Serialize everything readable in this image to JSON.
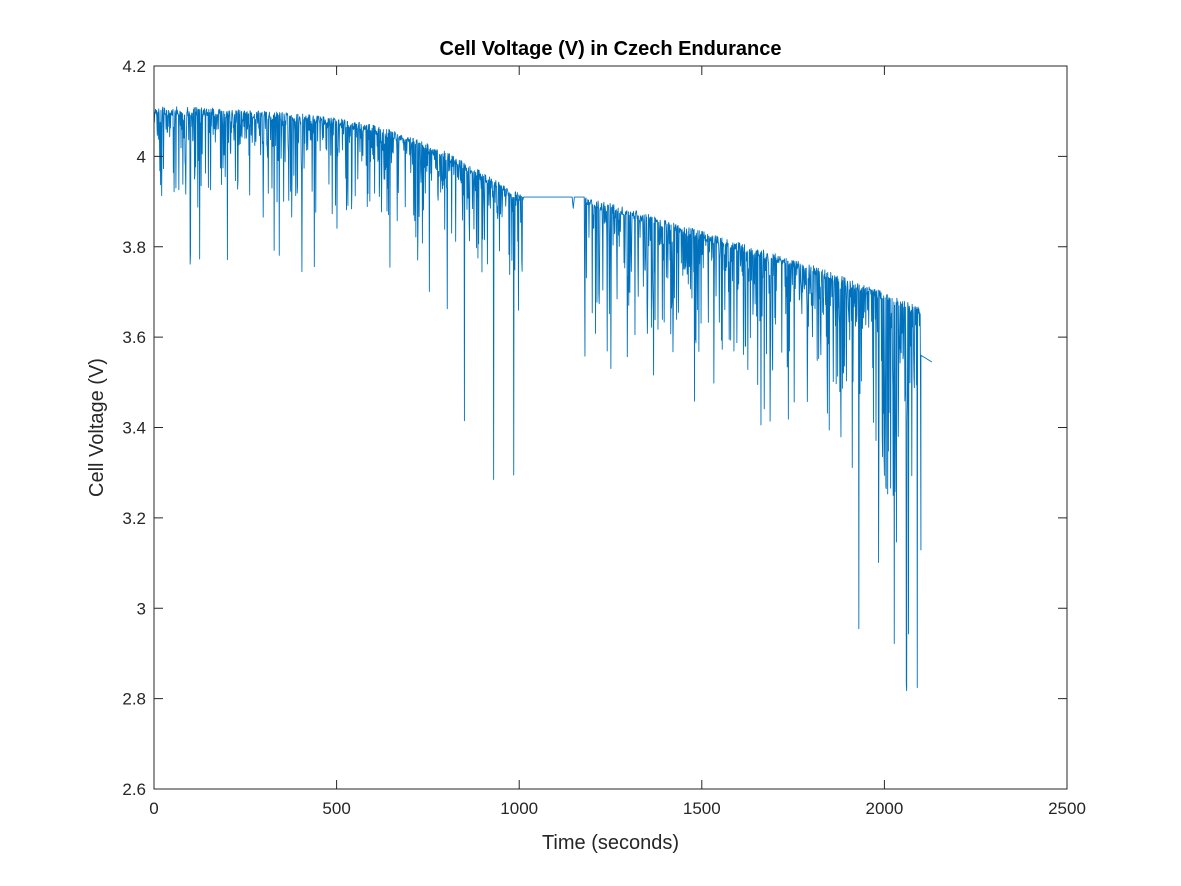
{
  "chart_data": {
    "type": "line",
    "title": "Cell Voltage (V) in Czech Endurance",
    "xlabel": "Time (seconds)",
    "ylabel": "Cell Voltage (V)",
    "xlim": [
      0,
      2500
    ],
    "ylim": [
      2.6,
      4.2
    ],
    "xticks": [
      0,
      500,
      1000,
      1500,
      2000,
      2500
    ],
    "xtick_labels": [
      "0",
      "500",
      "1000",
      "1500",
      "2000",
      "2500"
    ],
    "yticks": [
      2.6,
      2.8,
      3.0,
      3.2,
      3.4,
      3.6,
      3.8,
      4.0,
      4.2
    ],
    "ytick_labels": [
      "2.6",
      "2.8",
      "3",
      "3.2",
      "3.4",
      "3.6",
      "3.8",
      "4",
      "4.2"
    ],
    "grid": false,
    "legend": false,
    "line_color": "#0072BD",
    "series": [
      {
        "envelope_upper": [
          [
            0,
            4.11
          ],
          [
            100,
            4.11
          ],
          [
            200,
            4.105
          ],
          [
            300,
            4.1
          ],
          [
            400,
            4.095
          ],
          [
            500,
            4.085
          ],
          [
            600,
            4.07
          ],
          [
            700,
            4.045
          ],
          [
            800,
            4.01
          ],
          [
            900,
            3.965
          ],
          [
            950,
            3.94
          ],
          [
            1010,
            3.915
          ],
          [
            1030,
            3.91
          ],
          [
            1150,
            3.91
          ],
          [
            1180,
            3.91
          ],
          [
            1300,
            3.885
          ],
          [
            1400,
            3.86
          ],
          [
            1500,
            3.835
          ],
          [
            1600,
            3.81
          ],
          [
            1700,
            3.785
          ],
          [
            1800,
            3.76
          ],
          [
            1900,
            3.73
          ],
          [
            2000,
            3.7
          ],
          [
            2100,
            3.665
          ]
        ],
        "plateau": [
          [
            1015,
            3.91
          ],
          [
            1175,
            3.91
          ]
        ],
        "tail": [
          [
            2100,
            3.56
          ],
          [
            2130,
            3.545
          ]
        ],
        "notable_minima": [
          [
            850,
            3.415
          ],
          [
            930,
            3.285
          ],
          [
            985,
            3.295
          ],
          [
            1930,
            2.955
          ],
          [
            2060,
            2.83
          ],
          [
            2090,
            2.775
          ]
        ]
      }
    ]
  }
}
